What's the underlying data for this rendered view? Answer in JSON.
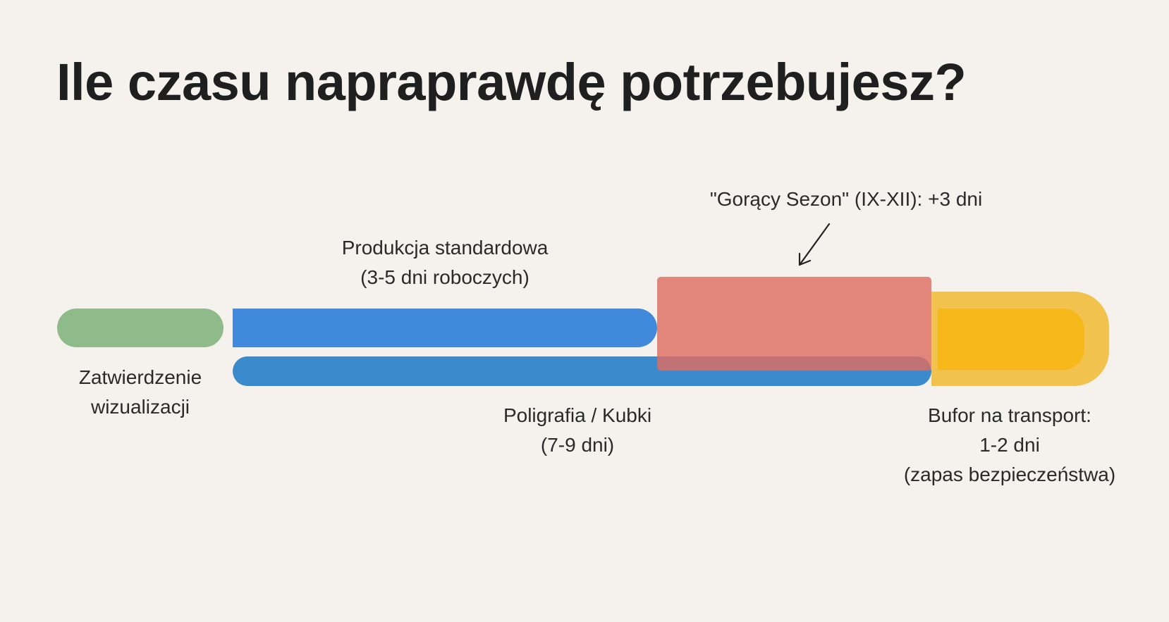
{
  "title": "Ile czasu napraprawdę potrzebujesz?",
  "stages": {
    "approval": {
      "line1": "Zatwierdzenie",
      "line2": "wizualizacji",
      "color": "#8fbb8a"
    },
    "standard": {
      "line1": "Produkcja standardowa",
      "line2": "(3-5 dni roboczych)",
      "color": "#4189da"
    },
    "print": {
      "line1": "Poligrafia / Kubki",
      "line2": "(7-9 dni)",
      "color": "#3b8bcc"
    },
    "hot_season": {
      "label": "\"Gorący Sezon\" (IX-XII): +3 dni",
      "color": "#de6c60"
    },
    "buffer": {
      "line1": "Bufor na transport:",
      "line2": "1-2 dni",
      "line3": "(zapas bezpieczeństwa)",
      "color": "#f2c24e"
    }
  }
}
